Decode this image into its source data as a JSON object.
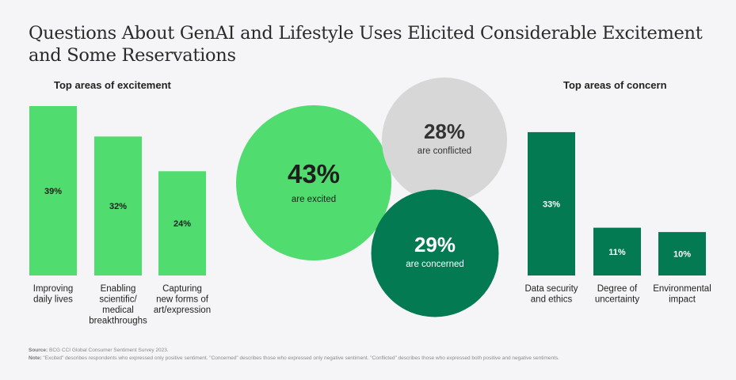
{
  "title": "Questions About GenAI and Lifestyle Uses Elicited Considerable Excitement and Some Reservations",
  "headings": {
    "excitement": "Top areas of excitement",
    "concern": "Top areas of concern"
  },
  "colors": {
    "light_green": "#50dc6e",
    "dark_green": "#037a52",
    "gray": "#d7d7d7",
    "background": "#f5f5f7"
  },
  "chart_data": [
    {
      "type": "bar",
      "title": "Top areas of excitement",
      "categories": [
        [
          "Improving",
          "daily lives"
        ],
        [
          "Enabling",
          "scientific/",
          "medical",
          "breakthroughs"
        ],
        [
          "Capturing",
          "new forms of",
          "art/expression"
        ]
      ],
      "values": [
        39,
        32,
        24
      ],
      "labels": [
        "39%",
        "32%",
        "24%"
      ],
      "color": "#50dc6e"
    },
    {
      "type": "bubble",
      "items": [
        {
          "value": 43,
          "label": "43%",
          "caption": "are excited",
          "color": "#50dc6e"
        },
        {
          "value": 28,
          "label": "28%",
          "caption": "are conflicted",
          "color": "#d7d7d7"
        },
        {
          "value": 29,
          "label": "29%",
          "caption": "are concerned",
          "color": "#037a52"
        }
      ]
    },
    {
      "type": "bar",
      "title": "Top areas of concern",
      "categories": [
        [
          "Data security",
          "and ethics"
        ],
        [
          "Degree of",
          "uncertainty"
        ],
        [
          "Environmental",
          "impact"
        ]
      ],
      "values": [
        33,
        11,
        10
      ],
      "labels": [
        "33%",
        "11%",
        "10%"
      ],
      "color": "#037a52"
    }
  ],
  "footer": {
    "source_label": "Source:",
    "source_text": "BCG CCI Global Consumer Sentiment Survey 2023.",
    "note_label": "Note:",
    "note_text": "\"Excited\" describes respondents who expressed only positive sentiment. \"Concerned\" describes those who expressed only negative sentiment. \"Conflicted\" describes those who expressed both positive and negative sentiments."
  }
}
